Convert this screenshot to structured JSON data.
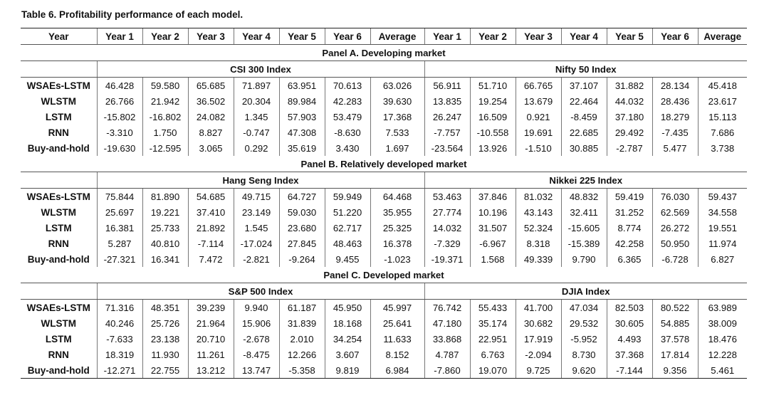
{
  "caption": "Table 6.  Profitability performance of each model.",
  "headers": [
    "Year",
    "Year 1",
    "Year 2",
    "Year 3",
    "Year 4",
    "Year 5",
    "Year 6",
    "Average",
    "Year 1",
    "Year 2",
    "Year 3",
    "Year 4",
    "Year 5",
    "Year 6",
    "Average"
  ],
  "panels": [
    {
      "title": "Panel A. Developing market",
      "left_index": "CSI 300 Index",
      "right_index": "Nifty 50 Index",
      "rows": [
        {
          "model": "WSAEs-LSTM",
          "values": [
            "46.428",
            "59.580",
            "65.685",
            "71.897",
            "63.951",
            "70.613",
            "63.026",
            "56.911",
            "51.710",
            "66.765",
            "37.107",
            "31.882",
            "28.134",
            "45.418"
          ]
        },
        {
          "model": "WLSTM",
          "values": [
            "26.766",
            "21.942",
            "36.502",
            "20.304",
            "89.984",
            "42.283",
            "39.630",
            "13.835",
            "19.254",
            "13.679",
            "22.464",
            "44.032",
            "28.436",
            "23.617"
          ]
        },
        {
          "model": "LSTM",
          "values": [
            "-15.802",
            "-16.802",
            "24.082",
            "1.345",
            "57.903",
            "53.479",
            "17.368",
            "26.247",
            "16.509",
            "0.921",
            "-8.459",
            "37.180",
            "18.279",
            "15.113"
          ]
        },
        {
          "model": "RNN",
          "values": [
            "-3.310",
            "1.750",
            "8.827",
            "-0.747",
            "47.308",
            "-8.630",
            "7.533",
            "-7.757",
            "-10.558",
            "19.691",
            "22.685",
            "29.492",
            "-7.435",
            "7.686"
          ]
        },
        {
          "model": "Buy-and-hold",
          "values": [
            "-19.630",
            "-12.595",
            "3.065",
            "0.292",
            "35.619",
            "3.430",
            "1.697",
            "-23.564",
            "13.926",
            "-1.510",
            "30.885",
            "-2.787",
            "5.477",
            "3.738"
          ]
        }
      ]
    },
    {
      "title": "Panel B. Relatively developed market",
      "left_index": "Hang Seng Index",
      "right_index": "Nikkei 225 Index",
      "rows": [
        {
          "model": "WSAEs-LSTM",
          "values": [
            "75.844",
            "81.890",
            "54.685",
            "49.715",
            "64.727",
            "59.949",
            "64.468",
            "53.463",
            "37.846",
            "81.032",
            "48.832",
            "59.419",
            "76.030",
            "59.437"
          ]
        },
        {
          "model": "WLSTM",
          "values": [
            "25.697",
            "19.221",
            "37.410",
            "23.149",
            "59.030",
            "51.220",
            "35.955",
            "27.774",
            "10.196",
            "43.143",
            "32.411",
            "31.252",
            "62.569",
            "34.558"
          ]
        },
        {
          "model": "LSTM",
          "values": [
            "16.381",
            "25.733",
            "21.892",
            "1.545",
            "23.680",
            "62.717",
            "25.325",
            "14.032",
            "31.507",
            "52.324",
            "-15.605",
            "8.774",
            "26.272",
            "19.551"
          ]
        },
        {
          "model": "RNN",
          "values": [
            "5.287",
            "40.810",
            "-7.114",
            "-17.024",
            "27.845",
            "48.463",
            "16.378",
            "-7.329",
            "-6.967",
            "8.318",
            "-15.389",
            "42.258",
            "50.950",
            "11.974"
          ]
        },
        {
          "model": "Buy-and-hold",
          "values": [
            "-27.321",
            "16.341",
            "7.472",
            "-2.821",
            "-9.264",
            "9.455",
            "-1.023",
            "-19.371",
            "1.568",
            "49.339",
            "9.790",
            "6.365",
            "-6.728",
            "6.827"
          ]
        }
      ]
    },
    {
      "title": "Panel C. Developed market",
      "left_index": "S&P 500 Index",
      "right_index": "DJIA Index",
      "rows": [
        {
          "model": "WSAEs-LSTM",
          "values": [
            "71.316",
            "48.351",
            "39.239",
            "9.940",
            "61.187",
            "45.950",
            "45.997",
            "76.742",
            "55.433",
            "41.700",
            "47.034",
            "82.503",
            "80.522",
            "63.989"
          ]
        },
        {
          "model": "WLSTM",
          "values": [
            "40.246",
            "25.726",
            "21.964",
            "15.906",
            "31.839",
            "18.168",
            "25.641",
            "47.180",
            "35.174",
            "30.682",
            "29.532",
            "30.605",
            "54.885",
            "38.009"
          ]
        },
        {
          "model": "LSTM",
          "values": [
            "-7.633",
            "23.138",
            "20.710",
            "-2.678",
            "2.010",
            "34.254",
            "11.633",
            "33.868",
            "22.951",
            "17.919",
            "-5.952",
            "4.493",
            "37.578",
            "18.476"
          ]
        },
        {
          "model": "RNN",
          "values": [
            "18.319",
            "11.930",
            "11.261",
            "-8.475",
            "12.266",
            "3.607",
            "8.152",
            "4.787",
            "6.763",
            "-2.094",
            "8.730",
            "37.368",
            "17.814",
            "12.228"
          ]
        },
        {
          "model": "Buy-and-hold",
          "values": [
            "-12.271",
            "22.755",
            "13.212",
            "13.747",
            "-5.358",
            "9.819",
            "6.984",
            "-7.860",
            "19.070",
            "9.725",
            "9.620",
            "-7.144",
            "9.356",
            "5.461"
          ]
        }
      ]
    }
  ]
}
